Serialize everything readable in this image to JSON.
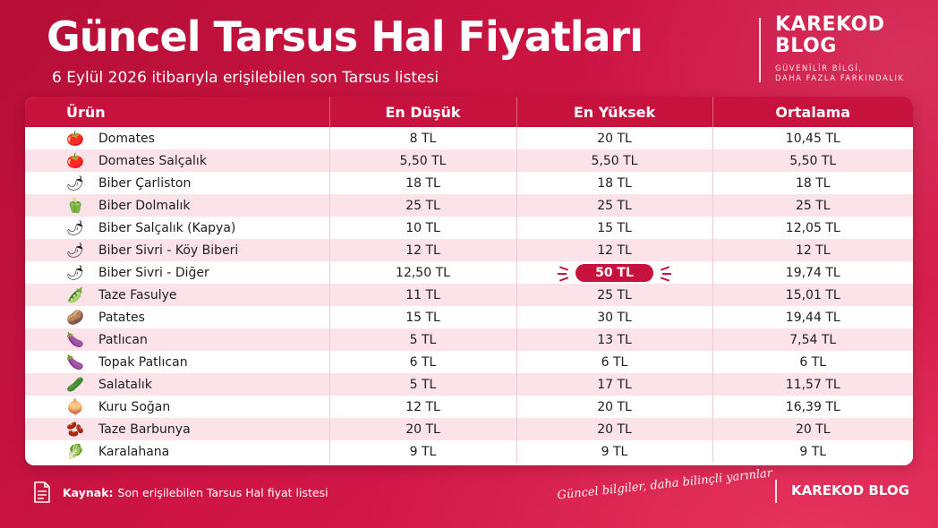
{
  "header": {
    "title": "Güncel Tarsus Hal Fiyatları",
    "subtitle": "6 Eylül 2026 itibarıyla erişilebilen son Tarsus listesi"
  },
  "brand": {
    "name_line1": "KAREKOD",
    "name_line2": "BLOG",
    "tagline_line1": "GÜVENİLİR BİLGİ,",
    "tagline_line2": "DAHA FAZLA FARKINDALIK"
  },
  "table": {
    "columns": [
      "Ürün",
      "En Düşük",
      "En Yüksek",
      "Ortalama"
    ],
    "rows": [
      {
        "icon": "tomato-icon",
        "glyph": "🍅",
        "product": "Domates",
        "min": "8 TL",
        "max": "20 TL",
        "avg": "10,45 TL"
      },
      {
        "icon": "tomato-icon",
        "glyph": "🍅",
        "product": "Domates Salçalık",
        "min": "5,50 TL",
        "max": "5,50 TL",
        "avg": "5,50 TL"
      },
      {
        "icon": "green-pepper-icon",
        "glyph": "🌶",
        "product": "Biber Çarliston",
        "min": "18 TL",
        "max": "18 TL",
        "avg": "18 TL"
      },
      {
        "icon": "bell-pepper-icon",
        "glyph": "🫑",
        "product": "Biber Dolmalık",
        "min": "25 TL",
        "max": "25 TL",
        "avg": "25 TL"
      },
      {
        "icon": "red-pepper-icon",
        "glyph": "🌶",
        "product": "Biber Salçalık (Kapya)",
        "min": "10 TL",
        "max": "15 TL",
        "avg": "12,05 TL"
      },
      {
        "icon": "green-pepper-icon",
        "glyph": "🌶",
        "product": "Biber Sivri - Köy Biberi",
        "min": "12 TL",
        "max": "12 TL",
        "avg": "12 TL"
      },
      {
        "icon": "green-pepper-icon",
        "glyph": "🌶",
        "product": "Biber Sivri - Diğer",
        "min": "12,50 TL",
        "max": "50 TL",
        "avg": "19,74 TL",
        "highlight_max": true
      },
      {
        "icon": "green-beans-icon",
        "glyph": "🫛",
        "product": "Taze Fasulye",
        "min": "11 TL",
        "max": "25 TL",
        "avg": "15,01 TL"
      },
      {
        "icon": "potato-icon",
        "glyph": "🥔",
        "product": "Patates",
        "min": "15 TL",
        "max": "30 TL",
        "avg": "19,44 TL"
      },
      {
        "icon": "eggplant-icon",
        "glyph": "🍆",
        "product": "Patlıcan",
        "min": "5 TL",
        "max": "13 TL",
        "avg": "7,54 TL"
      },
      {
        "icon": "round-eggplant-icon",
        "glyph": "🍆",
        "product": "Topak Patlıcan",
        "min": "6 TL",
        "max": "6 TL",
        "avg": "6 TL"
      },
      {
        "icon": "cucumber-icon",
        "glyph": "🥒",
        "product": "Salatalık",
        "min": "5 TL",
        "max": "17 TL",
        "avg": "11,57 TL"
      },
      {
        "icon": "onion-icon",
        "glyph": "🧅",
        "product": "Kuru Soğan",
        "min": "12 TL",
        "max": "20 TL",
        "avg": "16,39 TL"
      },
      {
        "icon": "borlotti-beans-icon",
        "glyph": "🫘",
        "product": "Taze Barbunya",
        "min": "20 TL",
        "max": "20 TL",
        "avg": "20 TL"
      },
      {
        "icon": "cabbage-icon",
        "glyph": "🥬",
        "product": "Karalahana",
        "min": "9 TL",
        "max": "9 TL",
        "avg": "9 TL"
      }
    ]
  },
  "footer": {
    "source_label": "Kaynak:",
    "source_text": "Son erişilebilen Tarsus Hal fiyat listesi",
    "slogan": "Güncel bilgiler, daha bilinçli yarınlar",
    "brand": "KAREKOD BLOG"
  },
  "colors": {
    "accent": "#c8123e",
    "row_alt": "#fbe3e9"
  }
}
